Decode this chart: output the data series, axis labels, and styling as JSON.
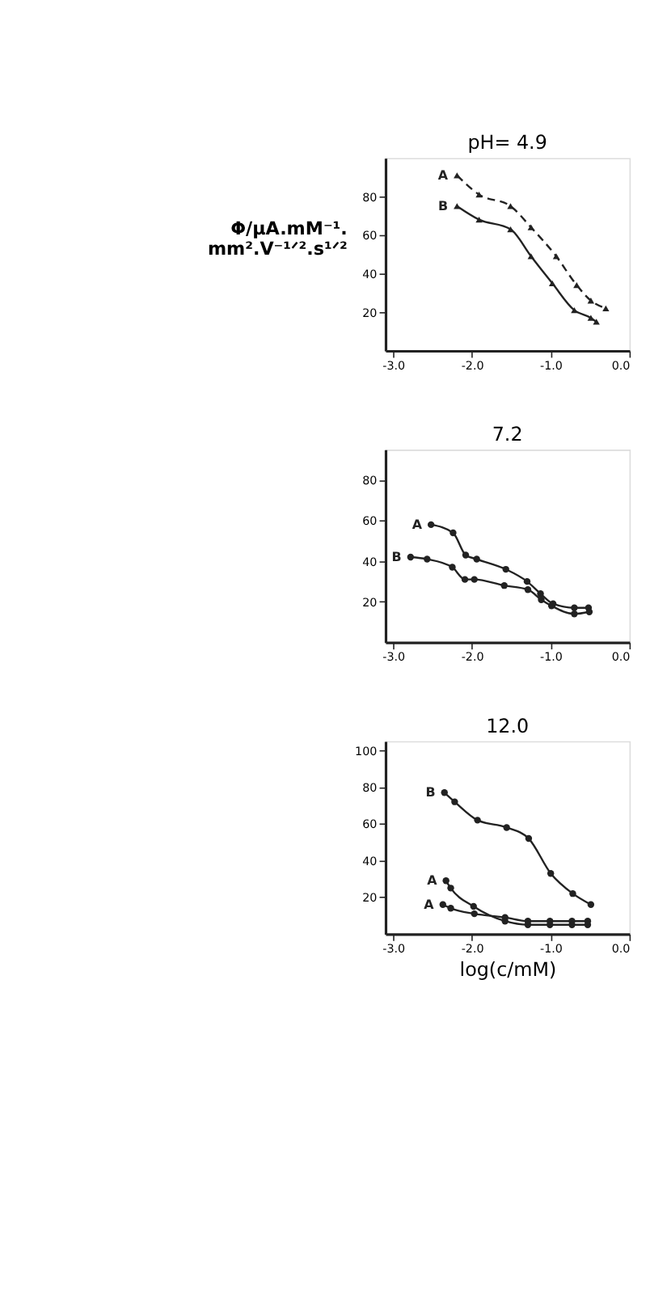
{
  "chart_data": [
    {
      "type": "line",
      "title": "pH= 4.9",
      "ylabel": "Φ/μA.mM⁻¹.\nmm².V⁻¹ᐟ².s¹ᐟ²",
      "xlim": [
        -3.1,
        0.0
      ],
      "ylim": [
        0,
        100
      ],
      "xticks": [
        {
          "value": -3,
          "label": "-3.0"
        },
        {
          "value": -2,
          "label": "-2.0"
        },
        {
          "value": -1,
          "label": "-1.0"
        },
        {
          "value": 0,
          "label": "0.0"
        }
      ],
      "yticks": [
        20,
        40,
        60,
        80
      ],
      "grid": false,
      "marker": "triangle",
      "series": [
        {
          "name": "A",
          "color": "#222222",
          "line_style": "dashed",
          "x": [
            -2.19,
            -1.91,
            -1.51,
            -1.25,
            -0.93,
            -0.67,
            -0.49,
            -0.3
          ],
          "values": [
            91,
            81,
            75,
            64,
            49,
            34,
            26,
            22
          ]
        },
        {
          "name": "B",
          "color": "#222222",
          "line_style": "solid",
          "x": [
            -2.19,
            -1.91,
            -1.51,
            -1.25,
            -0.98,
            -0.7,
            -0.49,
            -0.42
          ],
          "values": [
            75,
            68,
            63,
            49,
            35,
            21,
            17,
            15
          ]
        }
      ]
    },
    {
      "type": "line",
      "title": "7.2",
      "xlim": [
        -3.1,
        0.0
      ],
      "ylim": [
        0,
        95
      ],
      "xticks": [
        {
          "value": -3,
          "label": "-3.0"
        },
        {
          "value": -2,
          "label": "-2.0"
        },
        {
          "value": -1,
          "label": "-1.0"
        },
        {
          "value": 0,
          "label": "0.0"
        }
      ],
      "yticks": [
        20,
        40,
        60,
        80
      ],
      "grid": false,
      "marker": "circle",
      "series": [
        {
          "name": "A",
          "color": "#222222",
          "line_style": "solid",
          "x": [
            -2.52,
            -2.24,
            -2.08,
            -1.94,
            -1.57,
            -1.3,
            -1.13,
            -0.97,
            -0.7,
            -0.52
          ],
          "values": [
            58,
            54,
            43,
            41,
            36,
            30,
            24,
            19,
            17,
            17
          ]
        },
        {
          "name": "B",
          "color": "#222222",
          "line_style": "solid",
          "x": [
            -2.78,
            -2.57,
            -2.25,
            -2.09,
            -1.97,
            -1.59,
            -1.29,
            -1.12,
            -0.99,
            -0.7,
            -0.51
          ],
          "values": [
            42,
            41,
            37,
            31,
            31,
            28,
            26,
            21,
            18,
            14,
            15
          ]
        }
      ]
    },
    {
      "type": "line",
      "title": "12.0",
      "xlabel": "log(c/mM)",
      "xlim": [
        -3.1,
        0.0
      ],
      "ylim": [
        0,
        105
      ],
      "xticks": [
        {
          "value": -3,
          "label": "-3.0"
        },
        {
          "value": -2,
          "label": "-2.0"
        },
        {
          "value": -1,
          "label": "-1.0"
        },
        {
          "value": 0,
          "label": "0.0"
        }
      ],
      "yticks": [
        20,
        40,
        60,
        80,
        100
      ],
      "grid": false,
      "marker": "circle",
      "series": [
        {
          "name": "B",
          "color": "#222222",
          "line_style": "solid",
          "x": [
            -2.35,
            -2.22,
            -1.93,
            -1.56,
            -1.28,
            -1.0,
            -0.72,
            -0.49
          ],
          "values": [
            77,
            72,
            62,
            58,
            52,
            33,
            22,
            16
          ]
        },
        {
          "name": "A",
          "color": "#222222",
          "line_style": "solid",
          "x": [
            -2.33,
            -2.27,
            -1.98,
            -1.58,
            -1.29,
            -1.01,
            -0.73,
            -0.53
          ],
          "values": [
            29,
            25,
            15,
            7,
            5,
            5,
            5,
            5
          ]
        },
        {
          "name": "A",
          "color": "#222222",
          "line_style": "solid",
          "x": [
            -2.37,
            -2.27,
            -1.97,
            -1.58,
            -1.29,
            -1.01,
            -0.73,
            -0.53
          ],
          "values": [
            16,
            14,
            11,
            9,
            7,
            7,
            7,
            7
          ]
        }
      ]
    }
  ]
}
